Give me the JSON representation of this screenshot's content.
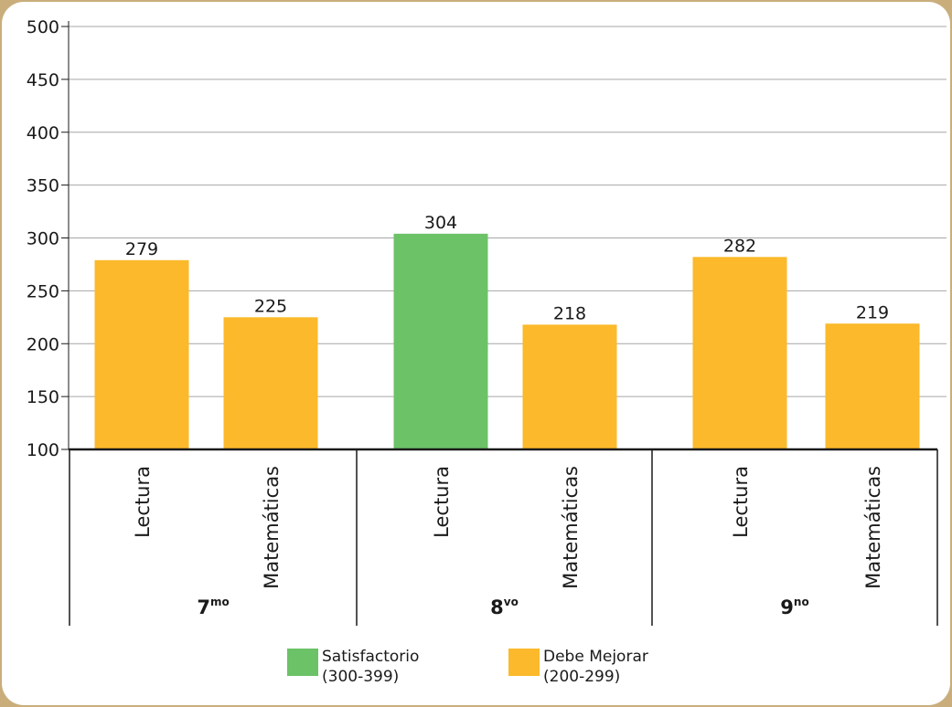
{
  "colors": {
    "satisfactorio": "#6cc267",
    "debe_mejorar": "#fbb92b",
    "gridline": "#a6a6a6",
    "axis": "#1a1a1a"
  },
  "chart_data": {
    "type": "bar",
    "ylim": [
      100,
      500
    ],
    "yticks": [
      100,
      150,
      200,
      250,
      300,
      350,
      400,
      450,
      500
    ],
    "grid": true,
    "groups": [
      {
        "label": "7",
        "sup": "mo",
        "bars": [
          {
            "label": "Lectura",
            "value": 279,
            "level": "debe_mejorar"
          },
          {
            "label": "Matemáticas",
            "value": 225,
            "level": "debe_mejorar"
          }
        ]
      },
      {
        "label": "8",
        "sup": "vo",
        "bars": [
          {
            "label": "Lectura",
            "value": 304,
            "level": "satisfactorio"
          },
          {
            "label": "Matemáticas",
            "value": 218,
            "level": "debe_mejorar"
          }
        ]
      },
      {
        "label": "9",
        "sup": "no",
        "bars": [
          {
            "label": "Lectura",
            "value": 282,
            "level": "debe_mejorar"
          },
          {
            "label": "Matemáticas",
            "value": 219,
            "level": "debe_mejorar"
          }
        ]
      }
    ],
    "legend": [
      {
        "key": "satisfactorio",
        "label": "Satisfactorio",
        "range": "(300-399)"
      },
      {
        "key": "debe_mejorar",
        "label": "Debe Mejorar",
        "range": "(200-299)"
      }
    ],
    "legend_position": "bottom"
  }
}
